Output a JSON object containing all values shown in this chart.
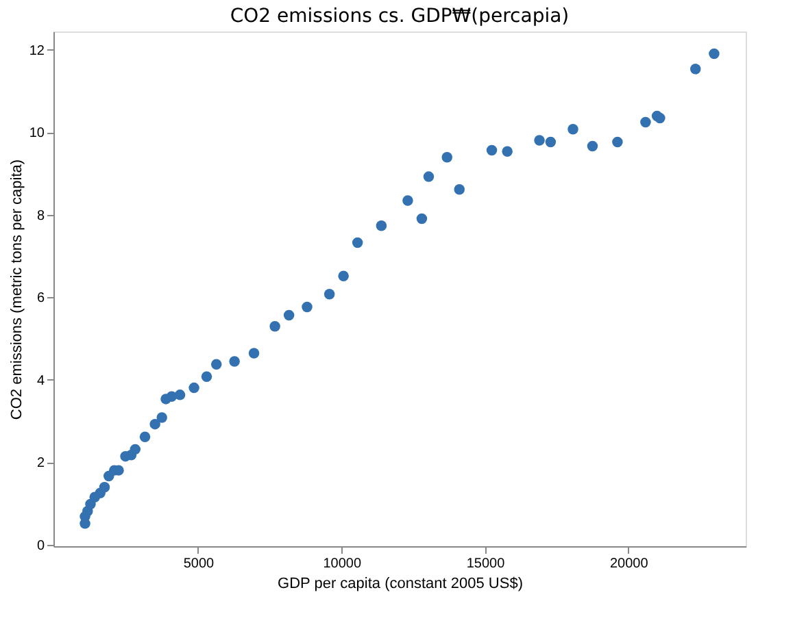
{
  "chart_data": {
    "type": "scatter",
    "title": "CO2 emissions cs. GDP₩(percapia)",
    "xlabel": "GDP per capita (constant 2005 US$)",
    "ylabel": "CO2 emissions (metric tons per capita)",
    "x": [
      1060,
      1060,
      1150,
      1250,
      1400,
      1590,
      1740,
      1890,
      2080,
      2230,
      2470,
      2670,
      2810,
      3150,
      3500,
      3740,
      3880,
      4080,
      4370,
      4860,
      5300,
      5640,
      6270,
      6950,
      7680,
      8170,
      8800,
      9580,
      10070,
      10560,
      11390,
      12310,
      12800,
      13040,
      13680,
      14110,
      15240,
      15780,
      16900,
      17290,
      18070,
      18750,
      19620,
      20600,
      21000,
      21100,
      22340,
      22990
    ],
    "series": [
      {
        "color": "#3471b0",
        "values": [
          0.51,
          0.68,
          0.81,
          0.98,
          1.15,
          1.25,
          1.39,
          1.66,
          1.8,
          1.8,
          2.14,
          2.17,
          2.31,
          2.61,
          2.92,
          3.08,
          3.53,
          3.59,
          3.63,
          3.8,
          4.07,
          4.37,
          4.44,
          4.64,
          5.29,
          5.56,
          5.76,
          6.07,
          6.51,
          7.32,
          7.73,
          8.34,
          7.9,
          8.92,
          9.39,
          8.61,
          9.56,
          9.53,
          9.8,
          9.76,
          10.07,
          9.66,
          9.76,
          10.24,
          10.39,
          10.34,
          11.53,
          11.9
        ]
      }
    ],
    "xlim": [
      -40,
      24090
    ],
    "ylim": [
      -0.04,
      12.44
    ],
    "xticks": [
      5000,
      10000,
      15000,
      20000
    ],
    "yticks": [
      0,
      2,
      4,
      6,
      8,
      10,
      12
    ],
    "grid": false
  }
}
